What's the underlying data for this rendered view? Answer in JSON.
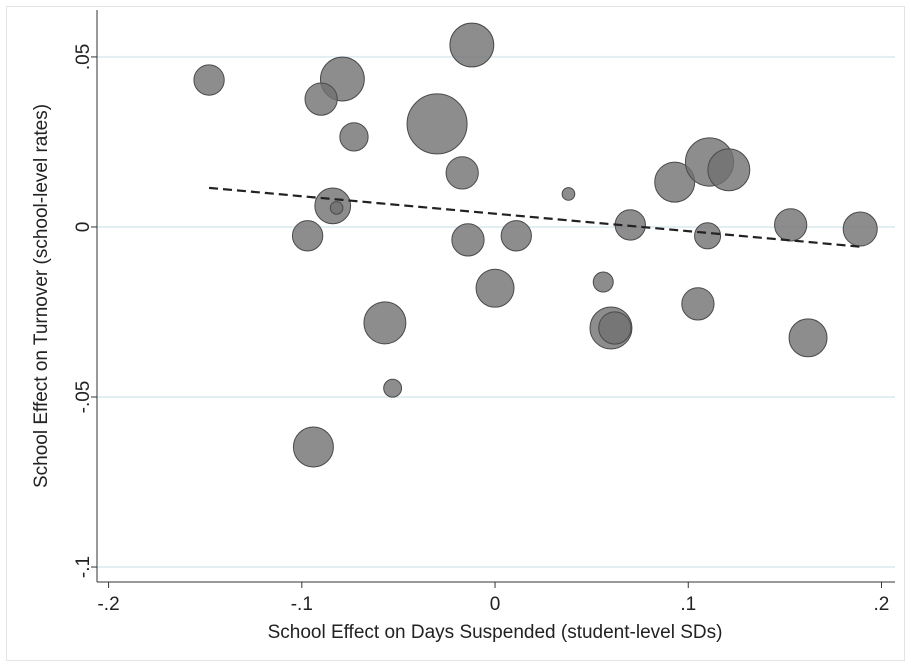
{
  "chart_data": {
    "type": "scatter",
    "x_label": "School Effect on Days Suspended (student-level SDs)",
    "y_label": "School Effect on Turnover (school-level rates)",
    "xlim": [
      -0.206,
      0.207
    ],
    "ylim": [
      -0.1044,
      0.0638
    ],
    "xticks": [
      {
        "value": -0.2,
        "label": "-.2"
      },
      {
        "value": -0.1,
        "label": "-.1"
      },
      0,
      {
        "value": 0.1,
        "label": ".1"
      },
      {
        "value": 0.2,
        "label": ".2"
      }
    ],
    "yticks": [
      {
        "value": 0.05,
        "label": ".05"
      },
      0,
      {
        "value": -0.05,
        "label": "-.05"
      },
      {
        "value": -0.1,
        "label": "-.1"
      }
    ],
    "grid": true,
    "color": "#707070",
    "x": [
      -0.148,
      -0.079,
      -0.09,
      -0.012,
      -0.073,
      -0.03,
      -0.017,
      -0.084,
      -0.082,
      -0.097,
      -0.014,
      0.011,
      0.038,
      0.0,
      -0.057,
      -0.053,
      -0.094,
      0.056,
      0.06,
      0.062,
      0.07,
      0.093,
      0.111,
      0.121,
      0.11,
      0.105,
      0.153,
      0.162,
      0.189
    ],
    "values": [
      0.0432,
      0.0435,
      0.0376,
      0.0535,
      0.0265,
      0.0303,
      0.0159,
      0.0062,
      0.0056,
      -0.0026,
      -0.0038,
      -0.0026,
      0.0097,
      -0.018,
      -0.0282,
      -0.0474,
      -0.0647,
      -0.0162,
      -0.0297,
      -0.0297,
      0.0006,
      0.0132,
      0.0191,
      0.0168,
      -0.0026,
      -0.0226,
      0.0006,
      -0.0326,
      -0.0006
    ],
    "sizes": [
      2.3,
      4.8,
      2.6,
      4.8,
      2.0,
      9.0,
      2.6,
      3.2,
      0.4,
      2.3,
      2.6,
      2.3,
      0.4,
      3.6,
      4.4,
      0.8,
      4.0,
      1.0,
      4.4,
      2.6,
      2.3,
      4.0,
      5.8,
      4.4,
      1.7,
      2.6,
      2.6,
      3.6,
      2.9
    ],
    "fit_line": {
      "x": [
        -0.148,
        0.189
      ],
      "values": [
        0.0115,
        -0.0058
      ]
    }
  }
}
